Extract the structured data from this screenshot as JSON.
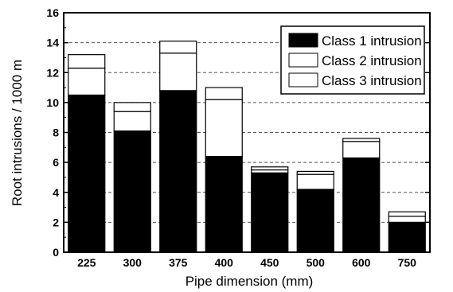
{
  "chart_data": {
    "type": "bar",
    "stacked": true,
    "categories": [
      "225",
      "300",
      "375",
      "400",
      "450",
      "500",
      "600",
      "750"
    ],
    "series": [
      {
        "name": "Class 1 intrusion",
        "values": [
          10.5,
          8.1,
          10.8,
          6.4,
          5.3,
          4.2,
          6.3,
          2.0
        ],
        "color": "#000000"
      },
      {
        "name": "Class 2 intrusion",
        "values": [
          1.8,
          1.3,
          2.5,
          3.8,
          0.2,
          1.0,
          1.1,
          0.4
        ],
        "color": "#ffffff"
      },
      {
        "name": "Class 3 intrusion",
        "values": [
          0.9,
          0.6,
          0.8,
          0.8,
          0.2,
          0.2,
          0.2,
          0.3
        ],
        "color": "#ffffff"
      }
    ],
    "xlabel": "Pipe dimension (mm)",
    "ylabel": "Root intrusions / 1000 m",
    "ylim": [
      0,
      16
    ],
    "yticks": [
      "0",
      "2",
      "4",
      "6",
      "8",
      "10",
      "12",
      "14",
      "16"
    ],
    "grid": "horizontal dashed",
    "legend": "top-right"
  }
}
